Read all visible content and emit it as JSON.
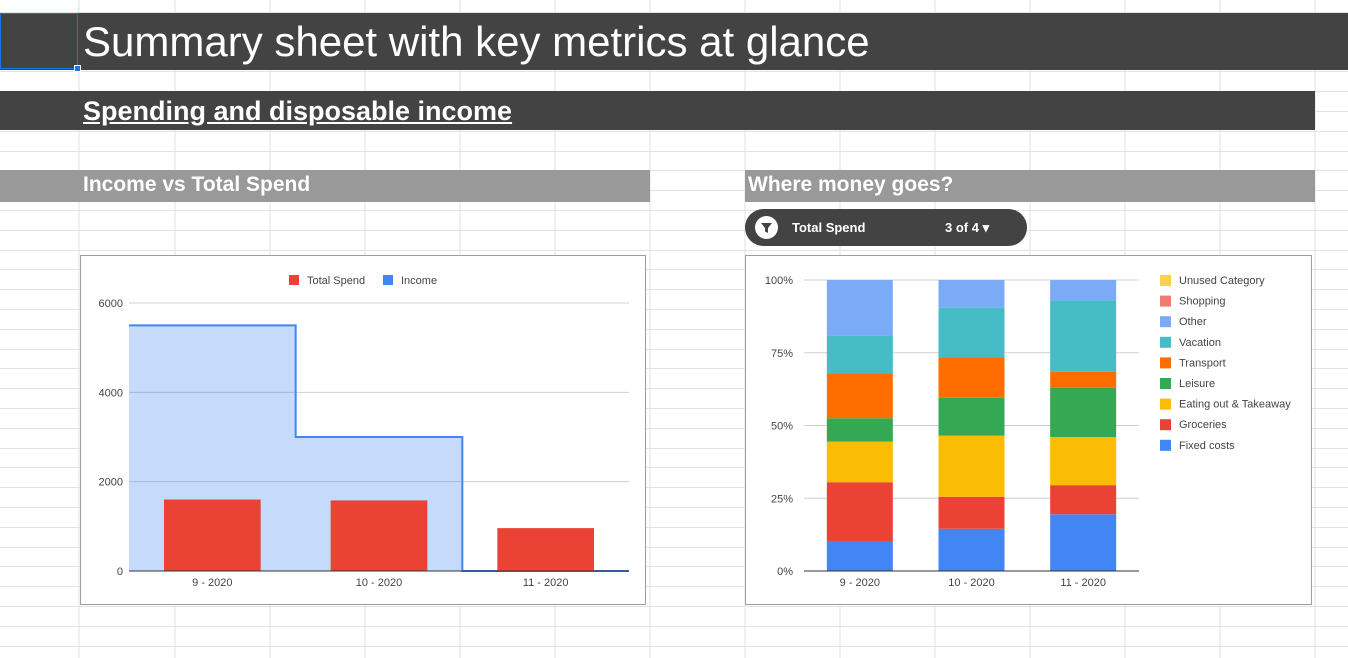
{
  "sheet": {
    "title": "Summary sheet with key metrics at glance",
    "subtitle": "Spending and disposable income",
    "section_left": "Income vs Total Spend",
    "section_right": "Where money goes?"
  },
  "filter": {
    "label": "Total Spend",
    "count": "3 of 4",
    "icon": "filter-icon"
  },
  "colors": {
    "header_dark": "#434343",
    "section_gray": "#999999",
    "selection": "#1a73e8"
  },
  "chart_data": [
    {
      "type": "bar",
      "categories": [
        "9 - 2020",
        "10 - 2020",
        "11 - 2020"
      ],
      "series": [
        {
          "name": "Total Spend",
          "type": "bar",
          "color": "#ea4335",
          "values": [
            1600,
            1580,
            960
          ]
        },
        {
          "name": "Income",
          "type": "stepped-area",
          "color": "#4285f4",
          "values": [
            5500,
            3000,
            0
          ]
        }
      ],
      "ylim": [
        0,
        6000
      ],
      "yticks": [
        "0",
        "2000",
        "4000",
        "6000"
      ],
      "legend": "top",
      "grid": true
    },
    {
      "type": "bar",
      "stacked": "percent",
      "categories": [
        "9 - 2020",
        "10 - 2020",
        "11 - 2020"
      ],
      "yticks": [
        "0%",
        "25%",
        "50%",
        "75%",
        "100%"
      ],
      "legend": "right",
      "grid": true,
      "series": [
        {
          "name": "Fixed costs",
          "color": "#4285f4",
          "values": [
            10,
            14.5,
            19.5
          ]
        },
        {
          "name": "Groceries",
          "color": "#ea4335",
          "values": [
            20.5,
            11,
            10
          ]
        },
        {
          "name": "Eating out & Takeaway",
          "color": "#fbbc04",
          "values": [
            14,
            21,
            16.5
          ]
        },
        {
          "name": "Leisure",
          "color": "#34a853",
          "values": [
            8,
            13,
            17
          ]
        },
        {
          "name": "Transport",
          "color": "#ff6d01",
          "values": [
            15.5,
            14,
            5.5
          ]
        },
        {
          "name": "Vacation",
          "color": "#46bdc6",
          "values": [
            13,
            17,
            24.5
          ]
        },
        {
          "name": "Other",
          "color": "#7baaf7",
          "values": [
            19,
            9.5,
            7
          ]
        },
        {
          "name": "Shopping",
          "color": "#f07b72",
          "values": [
            0,
            0,
            0
          ]
        },
        {
          "name": "Unused Category",
          "color": "#fcd04f",
          "values": [
            0,
            0,
            0
          ]
        }
      ]
    }
  ]
}
